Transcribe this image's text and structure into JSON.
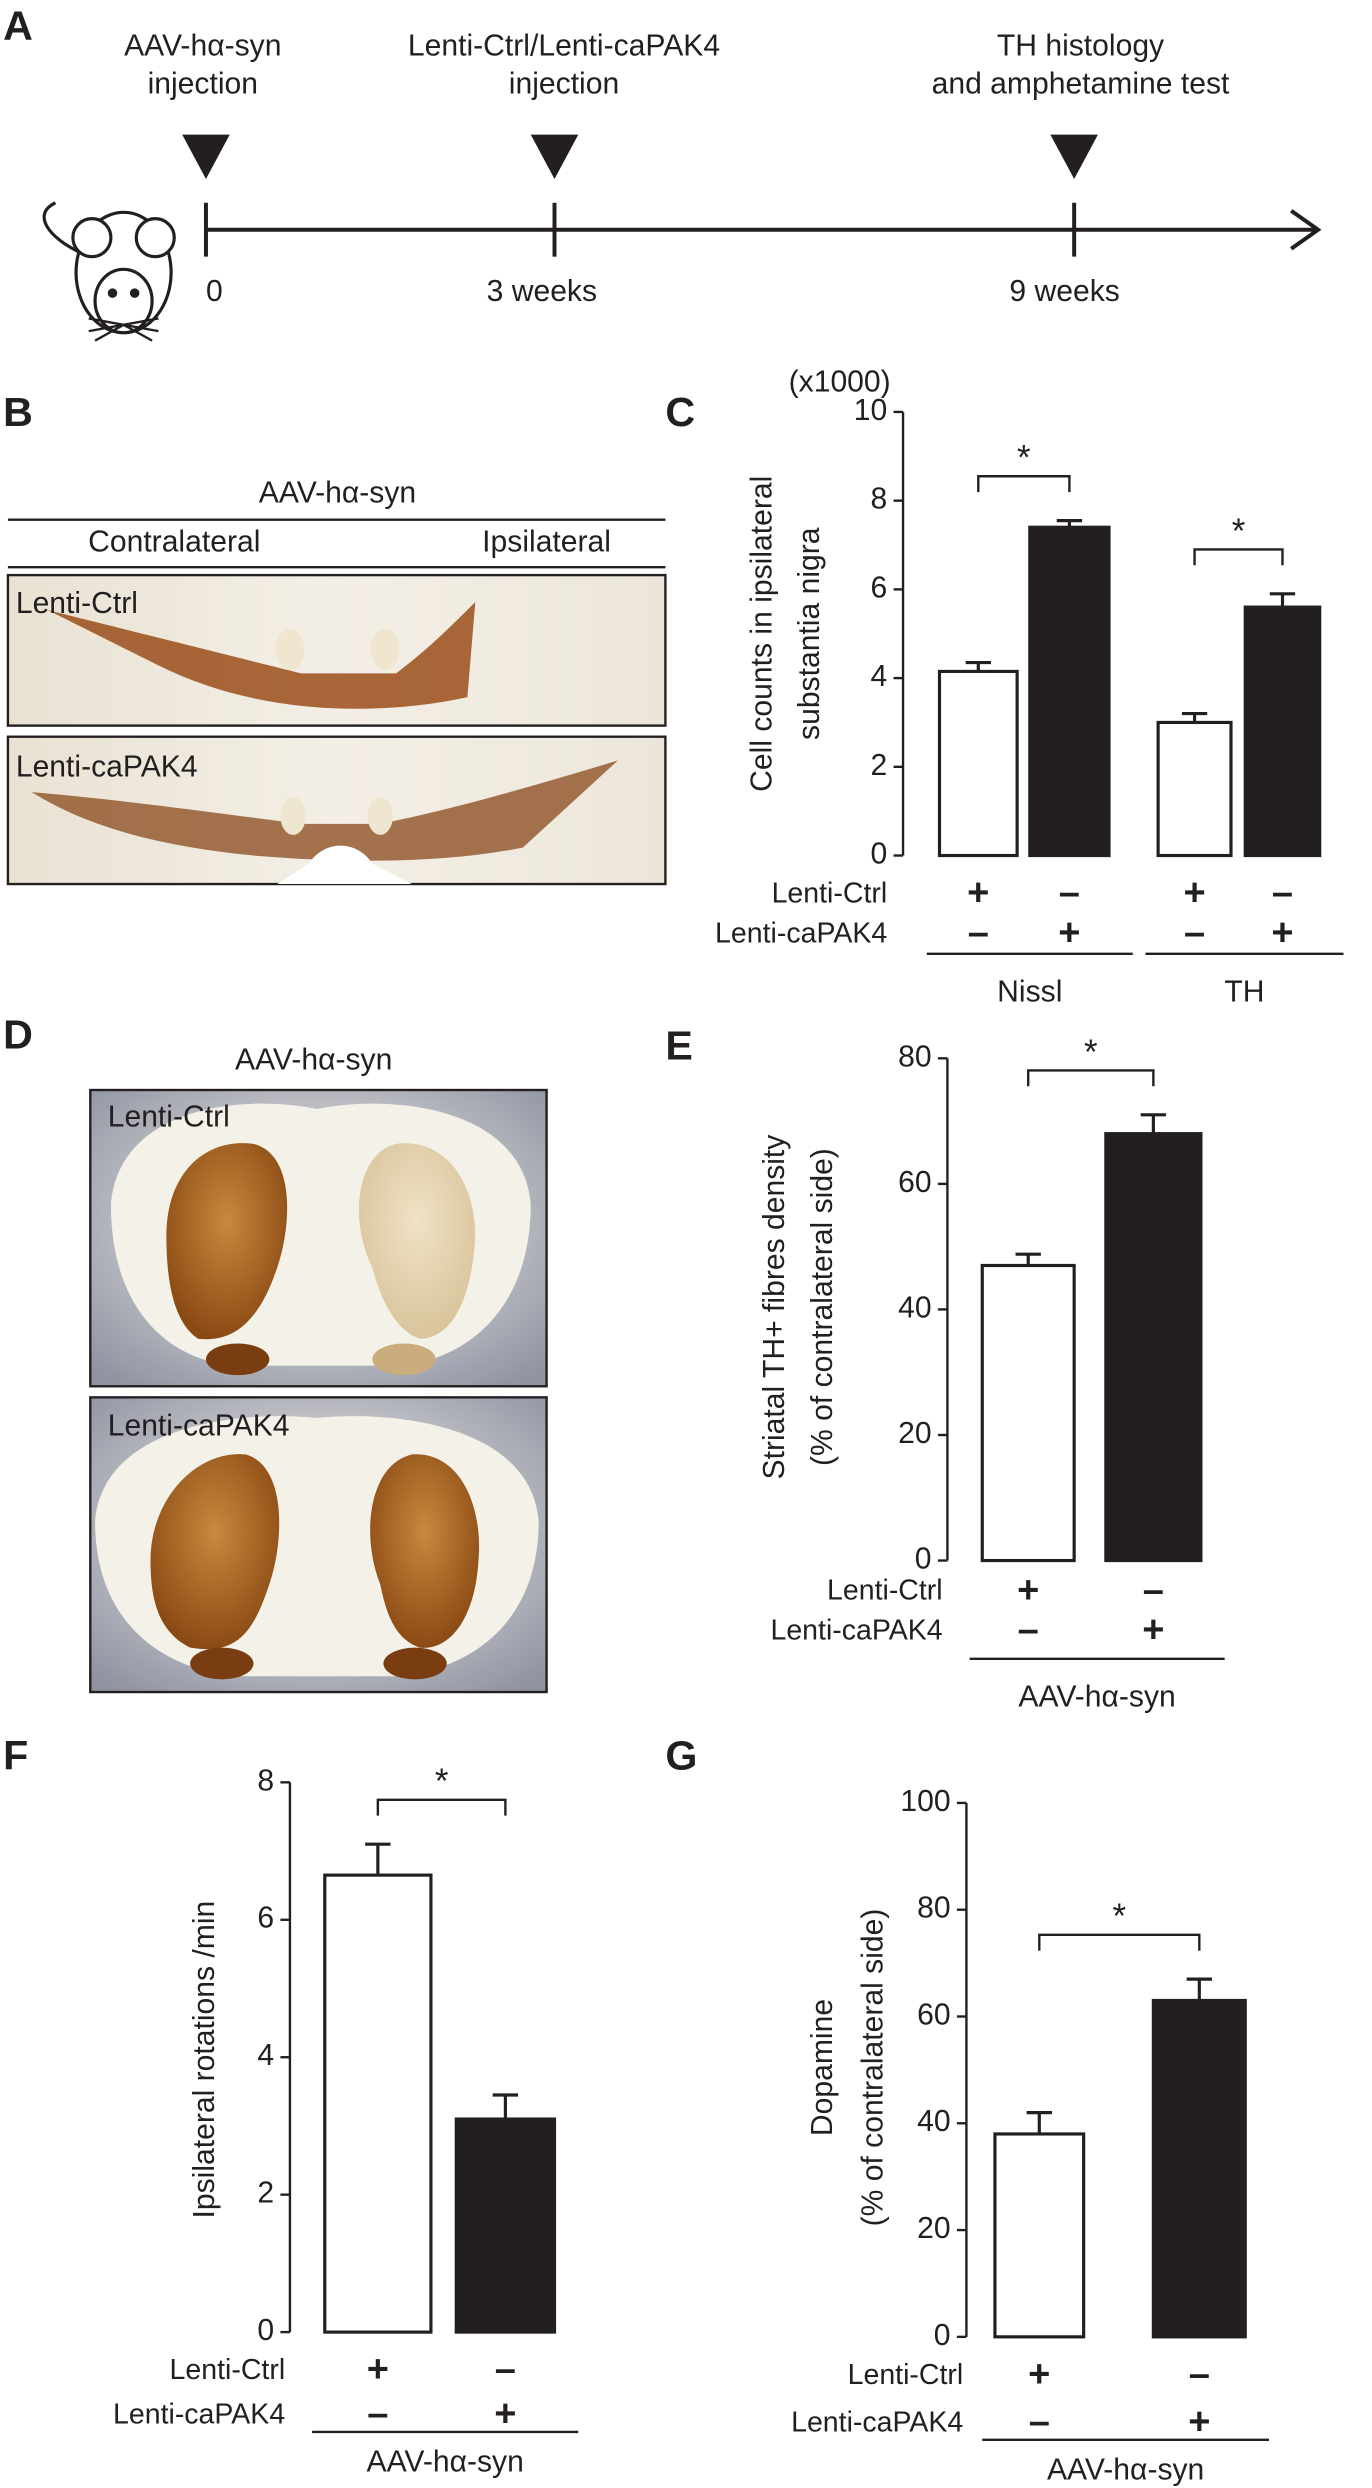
{
  "panel_labels": [
    "A",
    "B",
    "C",
    "D",
    "E",
    "F",
    "G"
  ],
  "timeline": {
    "events": [
      {
        "label": [
          "AAV-hα-syn",
          "injection"
        ],
        "time": "0"
      },
      {
        "label": [
          "Lenti-Ctrl/Lenti-caPAK4",
          "injection"
        ],
        "time": "3 weeks"
      },
      {
        "label": [
          "TH histology",
          "and amphetamine test"
        ],
        "time": "9 weeks"
      }
    ]
  },
  "panel_b": {
    "header": "AAV-hα-syn",
    "left": "Contralateral",
    "right": "Ipsilateral",
    "rows": [
      "Lenti-Ctrl",
      "Lenti-caPAK4"
    ]
  },
  "panel_d": {
    "header": "AAV-hα-syn",
    "rows": [
      "Lenti-Ctrl",
      "Lenti-caPAK4"
    ]
  },
  "chart_data": [
    {
      "type": "bar",
      "y_unit": "(x1000)",
      "y_label": [
        "Cell counts in ipsilateral",
        "substantia nigra"
      ],
      "ylim": [
        0,
        10
      ],
      "yticks": [
        0,
        2,
        4,
        6,
        8,
        10
      ],
      "values": [
        4.15,
        7.4,
        3.0,
        5.6
      ],
      "errors": [
        0.2,
        0.15,
        0.2,
        0.3
      ],
      "colors": [
        "#ffffff",
        "#231f20",
        "#ffffff",
        "#231f20"
      ],
      "conditions": [
        {
          "name": "Lenti-Ctrl",
          "marks": [
            "+",
            "–",
            "+",
            "–"
          ]
        },
        {
          "name": "Lenti-caPAK4",
          "marks": [
            "–",
            "+",
            "–",
            "+"
          ]
        }
      ],
      "groups": [
        {
          "label": "Nissl",
          "bars": [
            0,
            1
          ]
        },
        {
          "label": "TH",
          "bars": [
            2,
            3
          ]
        }
      ],
      "annotations": [
        {
          "text": "*",
          "between": [
            0,
            1
          ]
        },
        {
          "text": "*",
          "between": [
            2,
            3
          ]
        }
      ]
    },
    {
      "type": "bar",
      "y_label": [
        "Striatal TH+ fibres density",
        "(% of contralateral side)"
      ],
      "ylim": [
        0,
        80
      ],
      "yticks": [
        0,
        20,
        40,
        60,
        80
      ],
      "values": [
        47,
        68
      ],
      "errors": [
        1.8,
        3
      ],
      "colors": [
        "#ffffff",
        "#231f20"
      ],
      "conditions": [
        {
          "name": "Lenti-Ctrl",
          "marks": [
            "+",
            "–"
          ]
        },
        {
          "name": "Lenti-caPAK4",
          "marks": [
            "–",
            "+"
          ]
        }
      ],
      "groups": [
        {
          "label": "AAV-hα-syn",
          "bars": [
            0,
            1
          ]
        }
      ],
      "annotations": [
        {
          "text": "*",
          "between": [
            0,
            1
          ]
        }
      ]
    },
    {
      "type": "bar",
      "y_label": [
        "Ipsilateral rotations /min"
      ],
      "ylim": [
        0,
        8
      ],
      "yticks": [
        0,
        2,
        4,
        6,
        8
      ],
      "values": [
        6.65,
        3.1
      ],
      "errors": [
        0.45,
        0.35
      ],
      "colors": [
        "#ffffff",
        "#231f20"
      ],
      "conditions": [
        {
          "name": "Lenti-Ctrl",
          "marks": [
            "+",
            "–"
          ]
        },
        {
          "name": "Lenti-caPAK4",
          "marks": [
            "–",
            "+"
          ]
        }
      ],
      "groups": [
        {
          "label": "AAV-hα-syn",
          "bars": [
            0,
            1
          ]
        }
      ],
      "annotations": [
        {
          "text": "*",
          "between": [
            0,
            1
          ]
        }
      ]
    },
    {
      "type": "bar",
      "y_label": [
        "Dopamine",
        "(% of contralateral side)"
      ],
      "ylim": [
        0,
        100
      ],
      "yticks": [
        0,
        20,
        40,
        60,
        80,
        100
      ],
      "values": [
        38,
        63
      ],
      "errors": [
        4,
        4
      ],
      "colors": [
        "#ffffff",
        "#231f20"
      ],
      "conditions": [
        {
          "name": "Lenti-Ctrl",
          "marks": [
            "+",
            "–"
          ]
        },
        {
          "name": "Lenti-caPAK4",
          "marks": [
            "–",
            "+"
          ]
        }
      ],
      "groups": [
        {
          "label": "AAV-hα-syn",
          "bars": [
            0,
            1
          ]
        }
      ],
      "annotations": [
        {
          "text": "*",
          "between": [
            0,
            1
          ]
        }
      ]
    }
  ]
}
